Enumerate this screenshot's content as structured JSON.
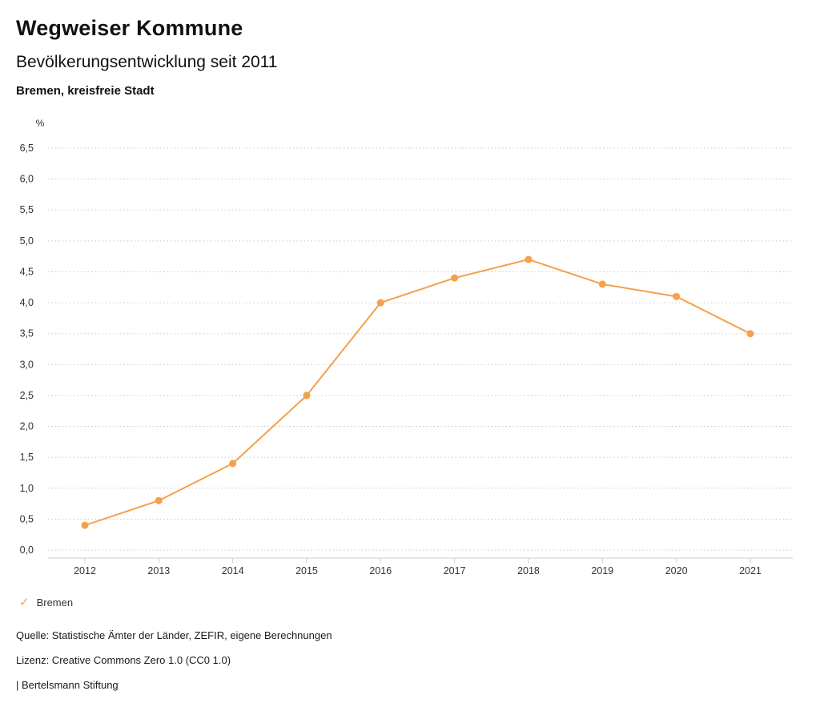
{
  "header": {
    "title": "Wegweiser Kommune",
    "subtitle": "Bevölkerungsentwicklung seit 2011",
    "region": "Bremen, kreisfreie Stadt"
  },
  "chart_data": {
    "type": "line",
    "title": "Bevölkerungsentwicklung seit 2011",
    "xlabel": "",
    "ylabel": "%",
    "x": [
      2012,
      2013,
      2014,
      2015,
      2016,
      2017,
      2018,
      2019,
      2020,
      2021
    ],
    "series": [
      {
        "name": "Bremen",
        "color": "#f5a04a",
        "values": [
          0.4,
          0.8,
          1.4,
          2.5,
          4.0,
          4.4,
          4.7,
          4.3,
          4.1,
          3.5
        ]
      }
    ],
    "ylim": [
      0,
      6.5
    ],
    "ytick_step": 0.5,
    "ytick_labels": [
      "0,0",
      "0,5",
      "1,0",
      "1,5",
      "2,0",
      "2,5",
      "3,0",
      "3,5",
      "4,0",
      "4,5",
      "5,0",
      "5,5",
      "6,0",
      "6,5"
    ],
    "grid": "dotted horizontal gridlines",
    "axis_color": "#cccccc",
    "grid_color": "#c9c9c9",
    "tick_label_color": "#333333",
    "legend_position": "bottom-left"
  },
  "legend": {
    "items": [
      {
        "label": "Bremen",
        "color": "#f5a04a",
        "marker": "check"
      }
    ]
  },
  "footer": {
    "source": "Quelle: Statistische Ämter der Länder, ZEFIR, eigene Berechnungen",
    "license": "Lizenz: Creative Commons Zero 1.0 (CC0 1.0)",
    "attribution": "| Bertelsmann Stiftung"
  }
}
